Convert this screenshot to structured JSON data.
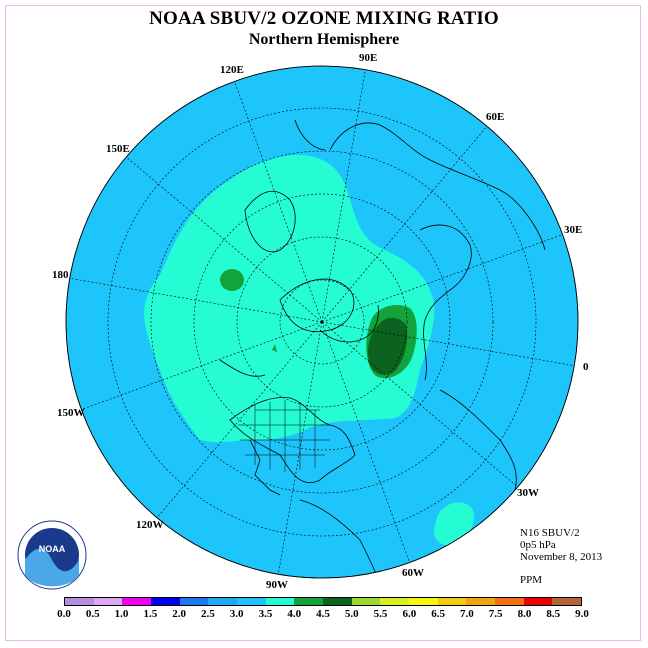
{
  "title": "NOAA SBUV/2 OZONE MIXING RATIO",
  "subtitle": "Northern Hemisphere",
  "longitude_labels": [
    "90E",
    "60E",
    "30E",
    "0",
    "30W",
    "60W",
    "90W",
    "120W",
    "150W",
    "180",
    "150E",
    "120E"
  ],
  "info": {
    "instrument": "N16 SBUV/2",
    "level": "0p5 hPa",
    "date": "November 8, 2013",
    "units": "PPM"
  },
  "colorbar": {
    "ticks": [
      "0.0",
      "0.5",
      "1.0",
      "1.5",
      "2.0",
      "2.5",
      "3.0",
      "3.5",
      "4.0",
      "4.5",
      "5.0",
      "5.5",
      "6.0",
      "6.5",
      "7.0",
      "7.5",
      "8.0",
      "8.5",
      "9.0"
    ],
    "colors": [
      "#b78be0",
      "#dca9f0",
      "#f000f0",
      "#0000f0",
      "#1d78f0",
      "#1eaaf2",
      "#1ec5fa",
      "#26fcd3",
      "#13a33c",
      "#0c6320",
      "#9ed82e",
      "#d8f020",
      "#f6f610",
      "#f2cc10",
      "#f2a510",
      "#f27010",
      "#f00000",
      "#b46237"
    ]
  },
  "colors": {
    "background_field": "#1ec5fa",
    "field_3_5": "#26fcd3",
    "field_4_0": "#13a33c",
    "field_4_5": "#0c6320"
  },
  "logo": {
    "text": "NOAA"
  }
}
